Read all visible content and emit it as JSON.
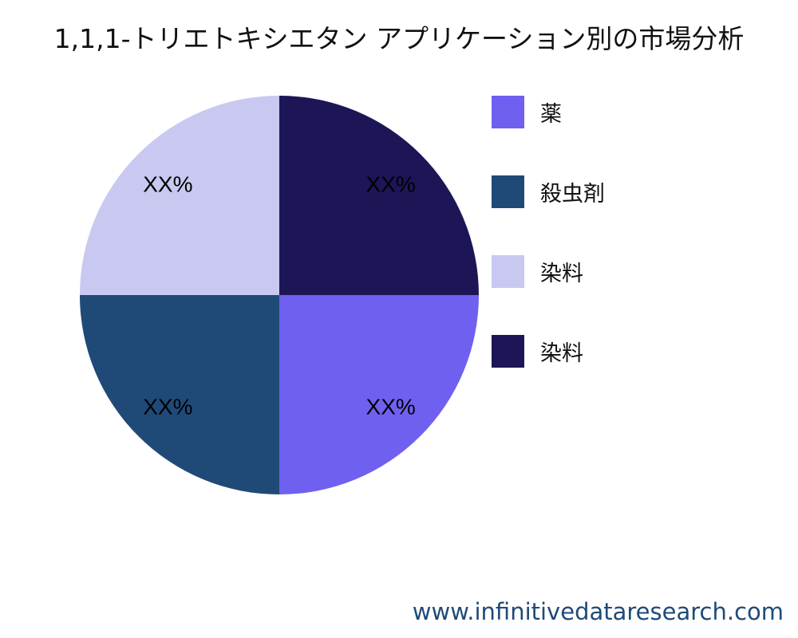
{
  "chart_data": {
    "type": "pie",
    "title": "1,1,1-トリエトキシエタン アプリケーション別の市場分析",
    "slices": [
      {
        "label": "薬",
        "value": 25,
        "display": "XX%",
        "color": "#7060f0"
      },
      {
        "label": "殺虫剤",
        "value": 25,
        "display": "XX%",
        "color": "#1f4a78"
      },
      {
        "label": "染料",
        "value": 25,
        "display": "XX%",
        "color": "#c8c8f0"
      },
      {
        "label": "染料",
        "value": 25,
        "display": "XX%",
        "color": "#1c1657"
      }
    ],
    "legend_position": "right"
  },
  "watermark": "www.infinitivedataresearch.com"
}
